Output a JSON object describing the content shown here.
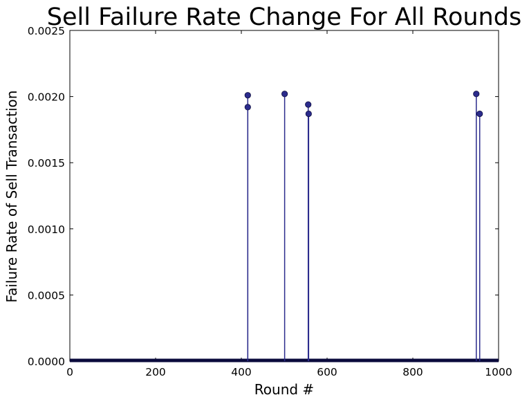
{
  "chart_data": {
    "type": "line",
    "title": "Sell Failure Rate Change For All Rounds",
    "xlabel": "Round #",
    "ylabel": "Failure Rate of Sell Transaction",
    "xlim": [
      0,
      1000
    ],
    "ylim": [
      0,
      0.0025
    ],
    "xticks": [
      "0",
      "200",
      "400",
      "600",
      "800",
      "1000"
    ],
    "yticks": [
      "0.0000",
      "0.0005",
      "0.0010",
      "0.0015",
      "0.0020",
      "0.0025"
    ],
    "grid": false,
    "series": [
      {
        "color": "#2b2b8c",
        "marker": "circle",
        "baseline": 0,
        "points": [
          {
            "x": 415,
            "y": 0.00201
          },
          {
            "x": 415,
            "y": 0.00192
          },
          {
            "x": 501,
            "y": 0.00202
          },
          {
            "x": 556,
            "y": 0.00194
          },
          {
            "x": 557,
            "y": 0.00187
          },
          {
            "x": 948,
            "y": 0.00202
          },
          {
            "x": 956,
            "y": 0.00187
          }
        ]
      }
    ]
  }
}
